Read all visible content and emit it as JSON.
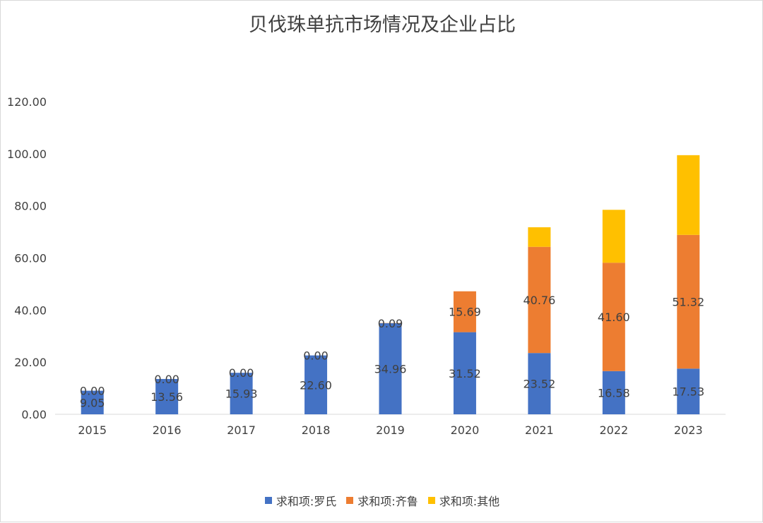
{
  "chart_data": {
    "type": "bar",
    "stacked": true,
    "title": "贝伐珠单抗市场情况及企业占比",
    "xlabel": "",
    "ylabel": "",
    "categories": [
      "2015",
      "2016",
      "2017",
      "2018",
      "2019",
      "2020",
      "2021",
      "2022",
      "2023"
    ],
    "ylim": [
      0,
      120
    ],
    "yticks": [
      "0.00",
      "20.00",
      "40.00",
      "60.00",
      "80.00",
      "100.00",
      "120.00"
    ],
    "grid": false,
    "legend_position": "bottom",
    "series": [
      {
        "name": "求和项:罗氏",
        "color": "#4472c4",
        "values": [
          9.05,
          13.56,
          15.93,
          22.6,
          34.96,
          31.52,
          23.52,
          16.58,
          17.53
        ],
        "labels": [
          "9.05",
          "13.56",
          "15.93",
          "22.60",
          "34.96",
          "31.52",
          "23.52",
          "16.58",
          "17.53"
        ]
      },
      {
        "name": "求和项:齐鲁",
        "color": "#ed7d31",
        "values": [
          0.0,
          0.0,
          0.0,
          0.0,
          0.09,
          15.69,
          40.76,
          41.6,
          51.32
        ],
        "labels": [
          "0.00",
          "0.00",
          "0.00",
          "0.00",
          "0.09",
          "15.69",
          "40.76",
          "41.60",
          "51.32"
        ]
      },
      {
        "name": "求和项:其他",
        "color": "#ffc000",
        "values": [
          0,
          0,
          0,
          0,
          0,
          0,
          7.5,
          20.3,
          30.6
        ],
        "labels": []
      }
    ]
  }
}
